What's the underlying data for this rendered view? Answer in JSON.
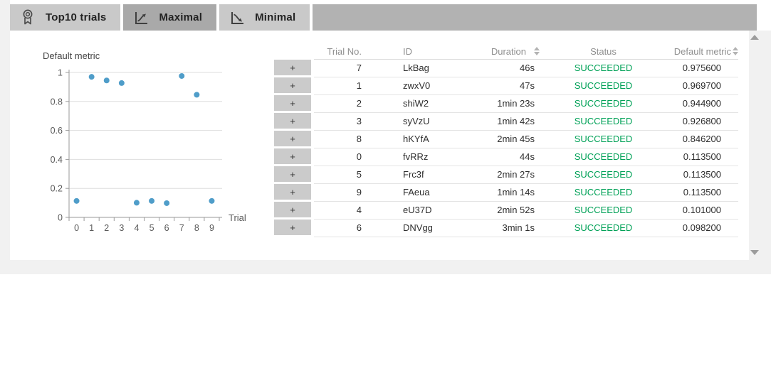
{
  "tabs": [
    {
      "label": "Top10 trials",
      "icon": "medal-icon",
      "active": false
    },
    {
      "label": "Maximal",
      "icon": "trend-up-icon",
      "active": true
    },
    {
      "label": "Minimal",
      "icon": "trend-down-icon",
      "active": false
    }
  ],
  "chart_data": {
    "type": "scatter",
    "title": "Default metric",
    "xlabel": "Trial",
    "x": [
      0,
      1,
      2,
      3,
      4,
      5,
      6,
      7,
      8,
      9
    ],
    "y": [
      0.1135,
      0.9697,
      0.9449,
      0.9268,
      0.101,
      0.1135,
      0.0982,
      0.9756,
      0.8462,
      0.1135
    ],
    "xticks": [
      "0",
      "1",
      "2",
      "3",
      "4",
      "5",
      "6",
      "7",
      "8",
      "9"
    ],
    "yticks": [
      "0",
      "0.2",
      "0.4",
      "0.6",
      "0.8",
      "1"
    ],
    "ylim": [
      0,
      1
    ],
    "grid": true,
    "point_color": "#4f9dc9"
  },
  "table": {
    "headers": {
      "trial_no": "Trial No.",
      "id": "ID",
      "duration": "Duration",
      "status": "Status",
      "metric": "Default metric"
    },
    "expander_label": "+",
    "status_color": "#00a157",
    "rows": [
      {
        "trial_no": "7",
        "id": "LkBag",
        "duration": "46s",
        "status": "SUCCEEDED",
        "metric": "0.975600"
      },
      {
        "trial_no": "1",
        "id": "zwxV0",
        "duration": "47s",
        "status": "SUCCEEDED",
        "metric": "0.969700"
      },
      {
        "trial_no": "2",
        "id": "shiW2",
        "duration": "1min 23s",
        "status": "SUCCEEDED",
        "metric": "0.944900"
      },
      {
        "trial_no": "3",
        "id": "syVzU",
        "duration": "1min 42s",
        "status": "SUCCEEDED",
        "metric": "0.926800"
      },
      {
        "trial_no": "8",
        "id": "hKYfA",
        "duration": "2min 45s",
        "status": "SUCCEEDED",
        "metric": "0.846200"
      },
      {
        "trial_no": "0",
        "id": "fvRRz",
        "duration": "44s",
        "status": "SUCCEEDED",
        "metric": "0.113500"
      },
      {
        "trial_no": "5",
        "id": "Frc3f",
        "duration": "2min 27s",
        "status": "SUCCEEDED",
        "metric": "0.113500"
      },
      {
        "trial_no": "9",
        "id": "FAeua",
        "duration": "1min 14s",
        "status": "SUCCEEDED",
        "metric": "0.113500"
      },
      {
        "trial_no": "4",
        "id": "eU37D",
        "duration": "2min 52s",
        "status": "SUCCEEDED",
        "metric": "0.101000"
      },
      {
        "trial_no": "6",
        "id": "DNVgg",
        "duration": "3min 1s",
        "status": "SUCCEEDED",
        "metric": "0.098200"
      }
    ]
  }
}
